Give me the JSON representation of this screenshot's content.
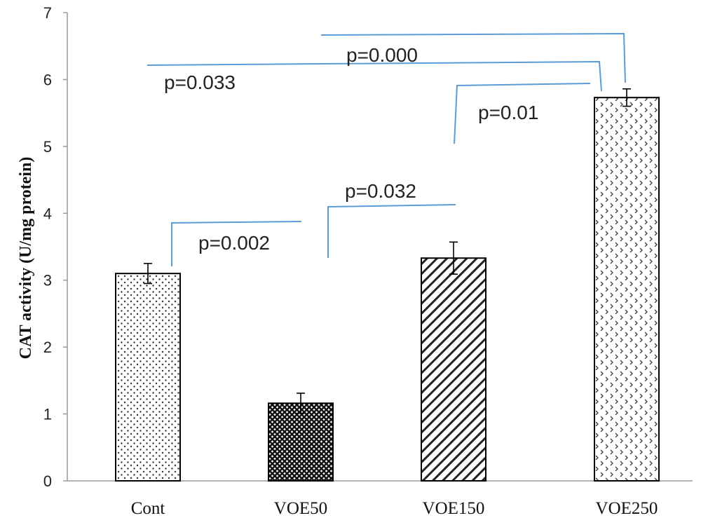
{
  "chart_data": {
    "type": "bar",
    "title": "",
    "xlabel": "",
    "ylabel": "CAT activity (U/mg protein)",
    "ylim": [
      0,
      7
    ],
    "yticks": [
      0,
      1,
      2,
      3,
      4,
      5,
      6,
      7
    ],
    "categories": [
      "Cont",
      "VOE50",
      "VOE150",
      "VOE250"
    ],
    "values": [
      3.1,
      1.16,
      3.33,
      5.73
    ],
    "errors": [
      0.15,
      0.15,
      0.24,
      0.13
    ],
    "fill_patterns": [
      "dots",
      "crosshatch",
      "diagonal-stripes",
      "chevrons"
    ],
    "grid": false,
    "legend": "none",
    "annotation_color": "#5b9bd5",
    "annotations": [
      {
        "label": "p=0.002",
        "from": "Cont",
        "to": "VOE50"
      },
      {
        "label": "p=0.032",
        "from": "VOE50",
        "to": "VOE150"
      },
      {
        "label": "p=0.01",
        "from": "VOE150",
        "to": "VOE250"
      },
      {
        "label": "p=0.033",
        "from": "Cont",
        "to": "VOE250"
      },
      {
        "label": "p=0.000",
        "from": "VOE50",
        "to": "VOE250"
      }
    ]
  }
}
